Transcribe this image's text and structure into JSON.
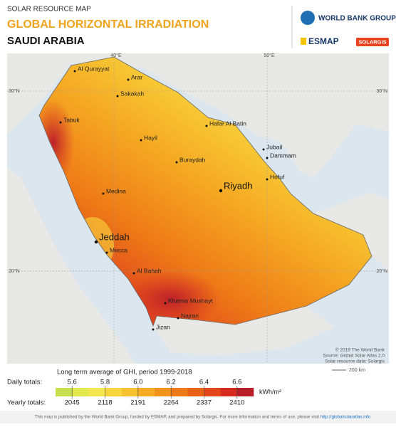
{
  "header": {
    "kicker": "SOLAR RESOURCE MAP",
    "title": "GLOBAL HORIZONTAL IRRADIATION",
    "country": "SAUDI ARABIA"
  },
  "logos": {
    "world_bank": "WORLD BANK GROUP",
    "esmap": "ESMAP",
    "solargis": "SOLARGIS"
  },
  "graticule": {
    "lon": [
      "40°E",
      "50°E"
    ],
    "lat": [
      "30°N",
      "20°N"
    ]
  },
  "cities": [
    "Al Qurayyat",
    "Arar",
    "Sakakah",
    "Tabuk",
    "Hafar Al Batin",
    "Hayil",
    "Jubail",
    "Dammam",
    "Buraydah",
    "Hofuf",
    "Riyadh",
    "Medina",
    "Jeddah",
    "Mecca",
    "Al Bahah",
    "Khamis Mushayt",
    "Najran",
    "Jizan"
  ],
  "credits": [
    "© 2019 The World Bank",
    "Source: Global Solar Atlas 2.0",
    "Solar resource data: Solargis"
  ],
  "scale_bar": "200 km",
  "legend": {
    "title": "Long term average of GHI, period 1999-2018",
    "daily_label": "Daily totals:",
    "yearly_label": "Yearly totals:",
    "unit": "kWh/m²",
    "daily": [
      "5.6",
      "5.8",
      "6.0",
      "6.2",
      "6.4",
      "6.6"
    ],
    "yearly": [
      "2045",
      "2118",
      "2191",
      "2264",
      "2337",
      "2410"
    ],
    "colors": [
      "#c7df4e",
      "#e3e84d",
      "#f4e64f",
      "#f8d73e",
      "#f7c22f",
      "#f5ab24",
      "#f2931c",
      "#ee7a17",
      "#e96113",
      "#e2461a",
      "#d72b22",
      "#b81d2a"
    ]
  },
  "footer": {
    "text": "This map is published by the World Bank Group, funded by ESMAP, and prepared by Solargis. For more information and terms of use, please visit",
    "link": "http://globalsolaratlas.info"
  }
}
